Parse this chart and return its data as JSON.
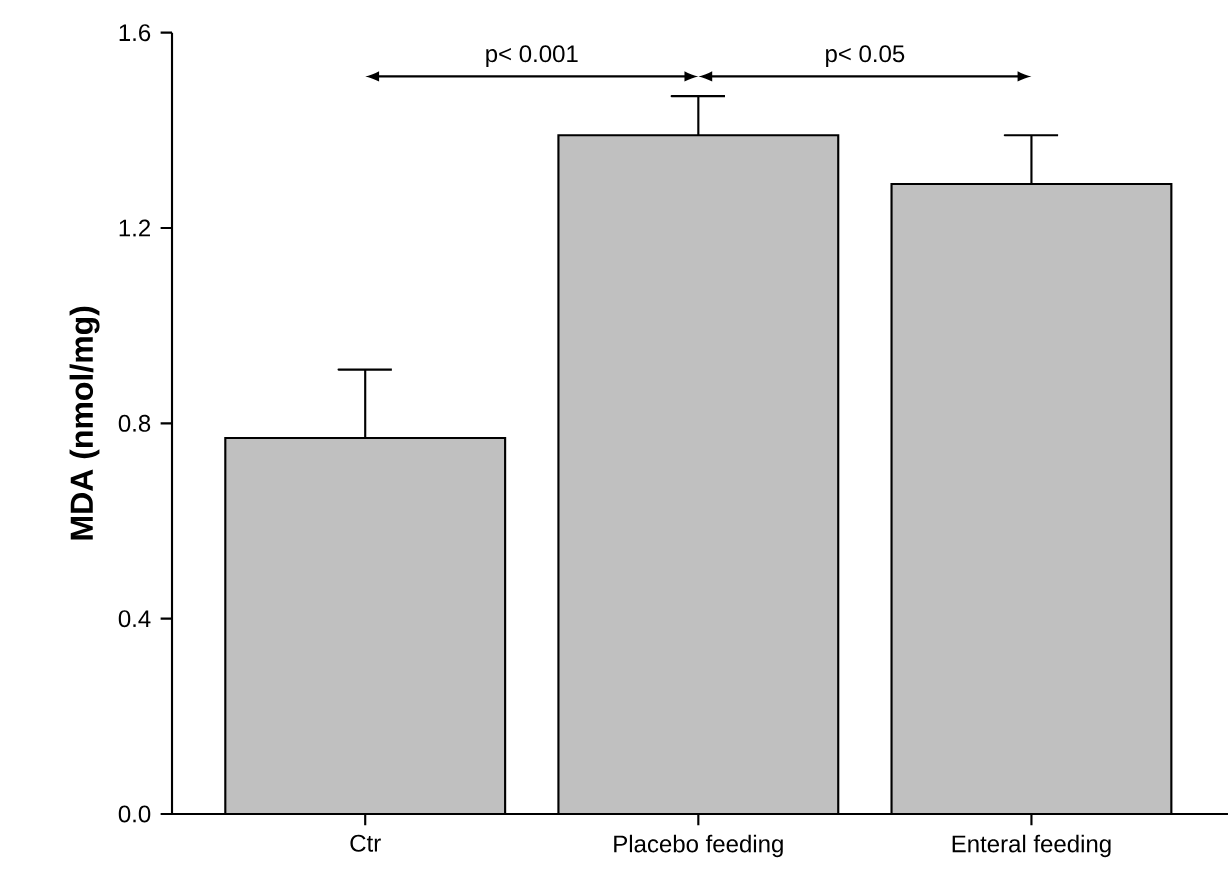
{
  "chart_data": {
    "type": "bar",
    "ylabel": "MDA (nmol/mg)",
    "categories": [
      "Ctr",
      "Placebo feeding",
      "Enteral feeding"
    ],
    "values": [
      0.77,
      1.39,
      1.29
    ],
    "errors": [
      [
        0.77,
        0.91
      ],
      [
        1.39,
        1.47
      ],
      [
        1.29,
        1.39
      ]
    ],
    "color": "#c0c0c0",
    "ylim": [
      0,
      1.6
    ],
    "yticks": [
      {
        "value": 0,
        "label": "0.0"
      },
      {
        "value": 0.4,
        "label": "0.4"
      },
      {
        "value": 0.8,
        "label": "0.8"
      },
      {
        "value": 1.2,
        "label": "1.2"
      },
      {
        "value": 1.6,
        "label": "1.6"
      }
    ],
    "annotations": [
      "p< 0.001",
      "p< 0.05"
    ],
    "grid": false
  }
}
